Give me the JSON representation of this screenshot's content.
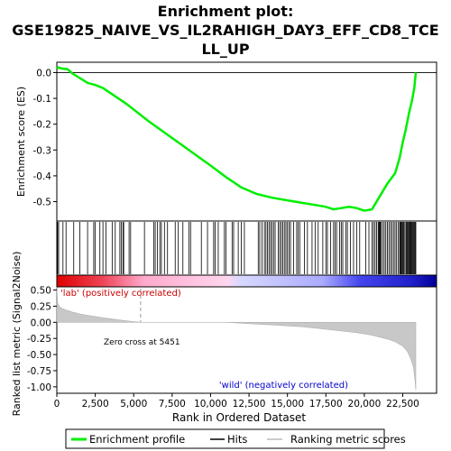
{
  "chart_data": {
    "title_line1": "Enrichment plot:",
    "title_line2": "GSE19825_NAIVE_VS_IL2RAHIGH_DAY3_EFF_CD8_TCE",
    "title_line3": "LL_UP",
    "n_genes": 23500,
    "top_panel": {
      "type": "line",
      "ylabel": "Enrichment score (ES)",
      "ylim": [
        -0.575,
        0.04
      ],
      "yticks": [
        0.0,
        -0.1,
        -0.2,
        -0.3,
        -0.4,
        -0.5
      ],
      "ytick_labels": [
        "0.0",
        "-0.1",
        "-0.2",
        "-0.3",
        "-0.4",
        "-0.5"
      ],
      "line_color": "#00ee00",
      "es_curve": {
        "x": [
          0,
          100,
          300,
          700,
          1000,
          2000,
          2500,
          3000,
          4500,
          6000,
          8000,
          10000,
          11000,
          12000,
          13000,
          14000,
          15000,
          16000,
          17000,
          17500,
          18000,
          18500,
          19000,
          19500,
          20000,
          20500,
          21000,
          21500,
          22000,
          22300,
          22500,
          22700,
          22900,
          23100,
          23250,
          23350
        ],
        "y": [
          0.015,
          0.02,
          0.016,
          0.013,
          -0.003,
          -0.04,
          -0.048,
          -0.06,
          -0.12,
          -0.19,
          -0.275,
          -0.36,
          -0.405,
          -0.445,
          -0.47,
          -0.485,
          -0.495,
          -0.505,
          -0.515,
          -0.52,
          -0.53,
          -0.525,
          -0.52,
          -0.525,
          -0.535,
          -0.53,
          -0.48,
          -0.43,
          -0.39,
          -0.33,
          -0.27,
          -0.22,
          -0.16,
          -0.11,
          -0.06,
          0.0
        ]
      }
    },
    "hits_panel": {
      "hit_positions": [
        50,
        120,
        400,
        600,
        1100,
        1500,
        2000,
        2400,
        2500,
        2800,
        3000,
        3200,
        3600,
        3800,
        4100,
        4200,
        4300,
        4350,
        4700,
        4800,
        5700,
        6300,
        6400,
        6550,
        6700,
        6800,
        7000,
        7200,
        7700,
        7900,
        8200,
        8600,
        8700,
        9400,
        9800,
        10200,
        10300,
        10500,
        10900,
        11000,
        11400,
        11500,
        11800,
        12000,
        12200,
        13100,
        13200,
        13350,
        13500,
        13600,
        13700,
        13800,
        13900,
        14000,
        14100,
        14200,
        14400,
        14500,
        14600,
        14700,
        14800,
        14900,
        15000,
        15100,
        15200,
        15400,
        15600,
        15700,
        15800,
        16100,
        16300,
        16600,
        16800,
        17000,
        17300,
        17500,
        17600,
        17800,
        18000,
        18100,
        18200,
        18400,
        18500,
        18600,
        18800,
        18900,
        19100,
        19300,
        19500,
        19700,
        20100,
        20300,
        20500,
        20600,
        20700,
        20800,
        20900,
        20950,
        21000,
        21050,
        21100,
        21200,
        21300,
        21400,
        21500,
        21600,
        21700,
        21800,
        21900,
        22000,
        22100,
        22200,
        22300,
        22350,
        22400,
        22450,
        22500,
        22550,
        22600,
        22700,
        22750,
        22800,
        22850,
        22900,
        22950,
        23000,
        23050,
        23100,
        23150,
        23200,
        23250,
        23300,
        23350
      ]
    },
    "bottom_panel": {
      "type": "area",
      "ylabel": "Ranked list metric (Signal2Noise)",
      "xlabel": "Rank in Ordered Dataset",
      "ylim": [
        -1.1,
        0.55
      ],
      "yticks": [
        0.5,
        0.25,
        0.0,
        -0.25,
        -0.5,
        -0.75,
        -1.0
      ],
      "ytick_labels": [
        "0.50",
        "0.25",
        "0.00",
        "-0.25",
        "-0.50",
        "-0.75",
        "-1.00"
      ],
      "xlim": [
        0,
        24700
      ],
      "xticks": [
        0,
        2500,
        5000,
        7500,
        10000,
        12500,
        15000,
        17500,
        20000,
        22500
      ],
      "xtick_labels": [
        "0",
        "2,500",
        "5,000",
        "7,500",
        "10,000",
        "12,500",
        "15,000",
        "17,500",
        "20,000",
        "22,500"
      ],
      "zero_cross": 5451,
      "metric_curve": {
        "x": [
          0,
          50,
          150,
          300,
          600,
          1000,
          1500,
          2000,
          2500,
          3000,
          3500,
          4000,
          4500,
          5000,
          5451,
          7000,
          9000,
          11000,
          12500,
          14000,
          16000,
          18000,
          19500,
          20500,
          21500,
          22000,
          22500,
          22800,
          23000,
          23200,
          23300,
          23350
        ],
        "y": [
          0.55,
          0.3,
          0.25,
          0.22,
          0.19,
          0.16,
          0.13,
          0.11,
          0.09,
          0.07,
          0.055,
          0.04,
          0.025,
          0.01,
          0.0,
          0.0,
          0.0,
          0.0,
          -0.02,
          -0.04,
          -0.07,
          -0.12,
          -0.16,
          -0.2,
          -0.26,
          -0.3,
          -0.37,
          -0.45,
          -0.55,
          -0.7,
          -0.9,
          -1.05
        ]
      },
      "annotations": {
        "pos_label": "'lab' (positively correlated)",
        "neg_label": "'wild' (negatively correlated)",
        "zero_cross_label": "Zero cross at 5451"
      }
    },
    "legend": {
      "items": [
        {
          "label": "Enrichment profile",
          "color": "#00ee00"
        },
        {
          "label": "Hits",
          "color": "#000000"
        },
        {
          "label": "Ranking metric scores",
          "color": "#bbbbbb"
        }
      ]
    }
  }
}
